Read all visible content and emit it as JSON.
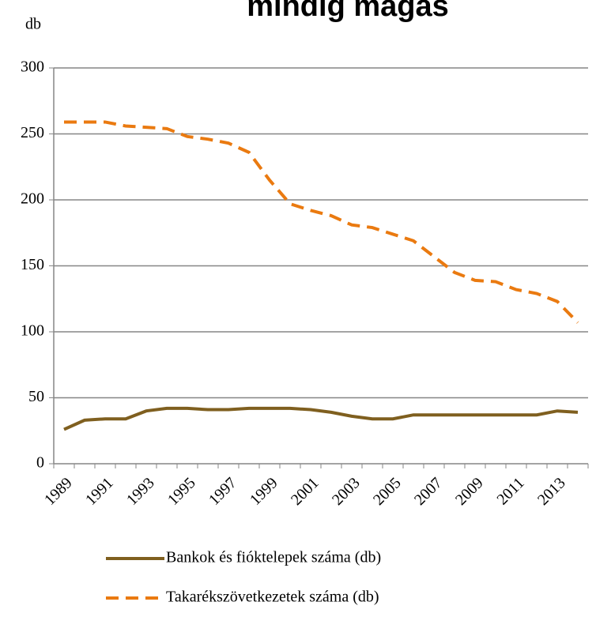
{
  "chart_data": {
    "type": "line",
    "title": "mindig magas",
    "y_label": "db",
    "categories": [
      "1989",
      null,
      "1991",
      null,
      "1993",
      null,
      "1995",
      null,
      "1997",
      null,
      "1999",
      null,
      "2001",
      null,
      "2003",
      null,
      "2005",
      null,
      "2007",
      null,
      "2009",
      null,
      "2011",
      null,
      "2013",
      null
    ],
    "series": [
      {
        "name": "Bankok és fióktelepek száma (db)",
        "color": "#7f5f1f",
        "dash": false,
        "values": [
          26,
          33,
          34,
          34,
          40,
          42,
          42,
          41,
          41,
          42,
          42,
          42,
          41,
          39,
          36,
          34,
          34,
          37,
          37,
          37,
          37,
          37,
          37,
          37,
          40,
          39
        ]
      },
      {
        "name": "Takarékszövetkezetek száma (db)",
        "color": "#ea7a10",
        "dash": true,
        "values": [
          259,
          259,
          259,
          256,
          255,
          254,
          248,
          246,
          243,
          236,
          215,
          197,
          192,
          188,
          181,
          179,
          174,
          169,
          157,
          145,
          139,
          138,
          132,
          129,
          123,
          107
        ]
      }
    ],
    "ylim": [
      0,
      300
    ],
    "yticks": [
      0,
      50,
      100,
      150,
      200,
      250,
      300
    ],
    "grid": true,
    "legend": "bottom"
  }
}
